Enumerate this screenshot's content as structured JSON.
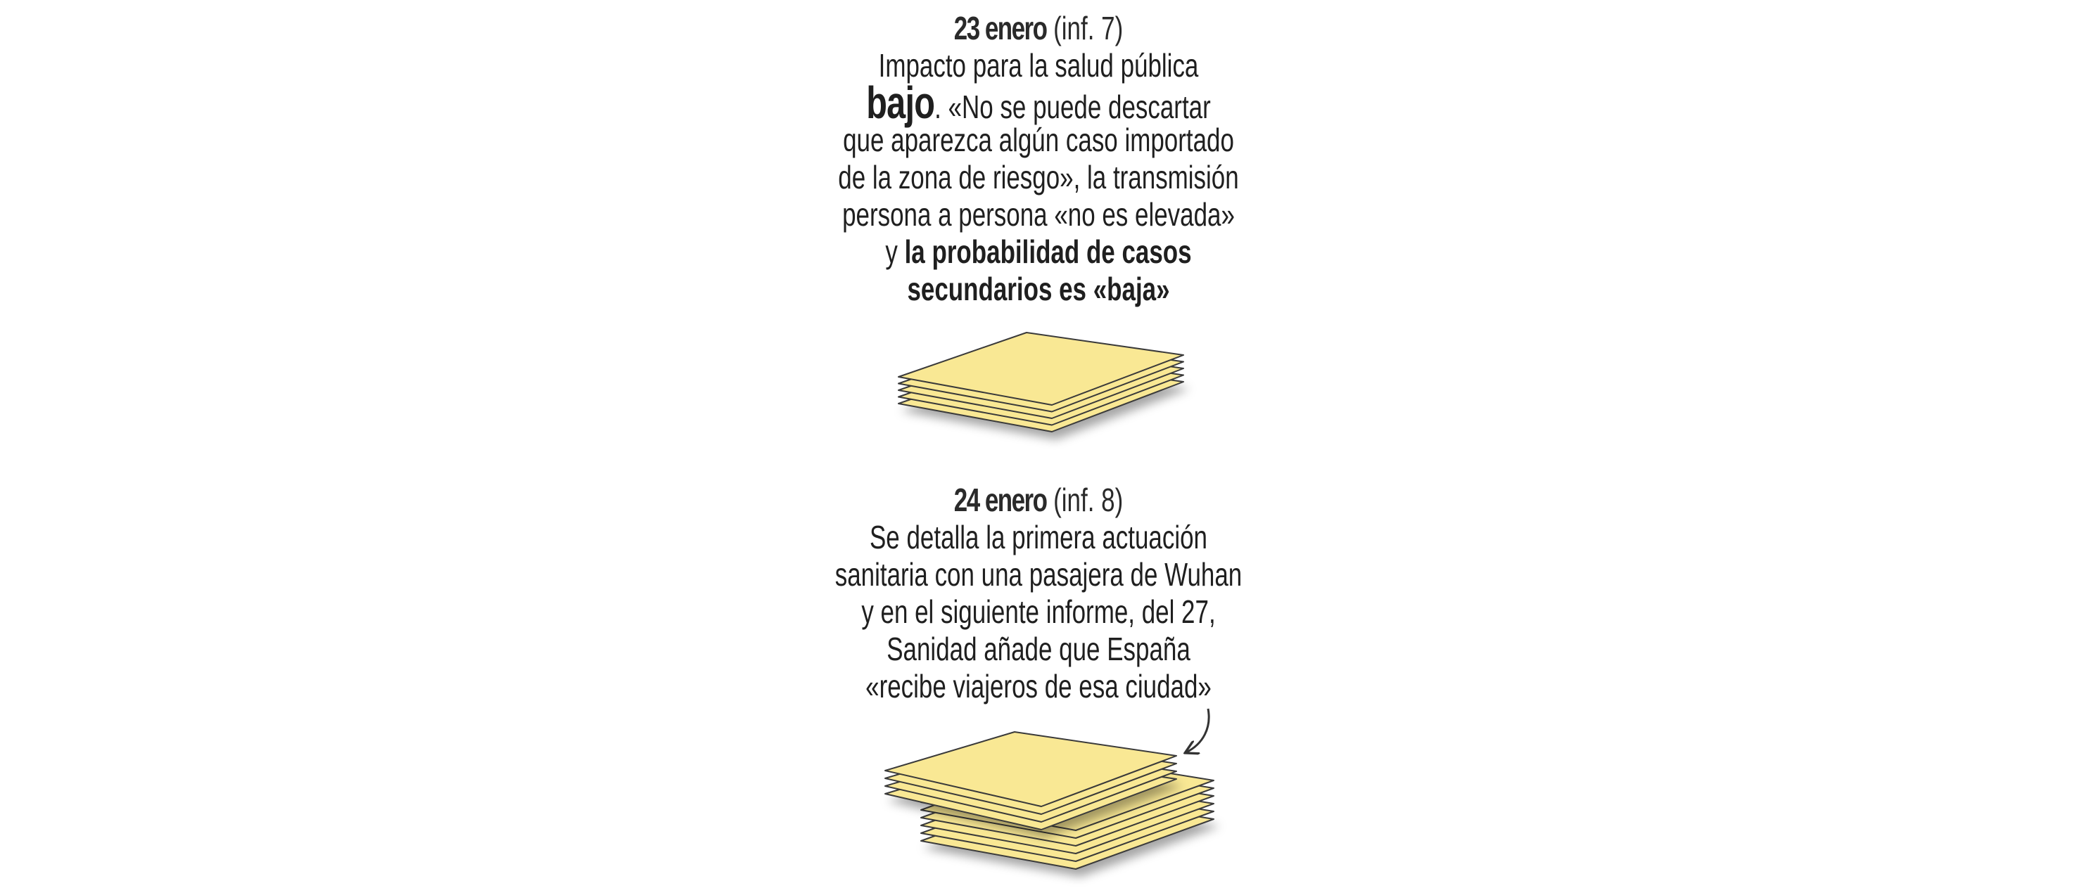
{
  "colors": {
    "sheet_fill": "#f9e894",
    "sheet_stroke": "#3a3a3a",
    "text": "#1f1f1f"
  },
  "entries": [
    {
      "date": "23 enero",
      "ref": "(inf. 7)",
      "lines": [
        [
          {
            "t": "Impacto para la salud pública",
            "s": ""
          }
        ],
        [
          {
            "t": "bajo",
            "s": "big"
          },
          {
            "t": ". «No se puede descartar",
            "s": ""
          }
        ],
        [
          {
            "t": "que aparezca algún caso importado",
            "s": ""
          }
        ],
        [
          {
            "t": "de la zona de riesgo», la transmisión",
            "s": ""
          }
        ],
        [
          {
            "t": "persona a persona «no es elevada»",
            "s": ""
          }
        ],
        [
          {
            "t": "y ",
            "s": ""
          },
          {
            "t": "la probabilidad de casos",
            "s": "b"
          }
        ],
        [
          {
            "t": "secundarios es «baja»",
            "s": "b"
          }
        ]
      ],
      "document_stack_sheets": 5
    },
    {
      "date": "24 enero",
      "ref": "(inf. 8)",
      "lines": [
        [
          {
            "t": "Se detalla la primera actuación",
            "s": ""
          }
        ],
        [
          {
            "t": "sanitaria con una pasajera de Wuhan",
            "s": ""
          }
        ],
        [
          {
            "t": "y en el siguiente informe, del 27,",
            "s": ""
          }
        ],
        [
          {
            "t": "Sanidad añade que España",
            "s": ""
          }
        ],
        [
          {
            "t": "«recibe viajeros de esa ciudad»",
            "s": ""
          }
        ]
      ],
      "document_stack_sheets": [
        4,
        6
      ]
    }
  ]
}
